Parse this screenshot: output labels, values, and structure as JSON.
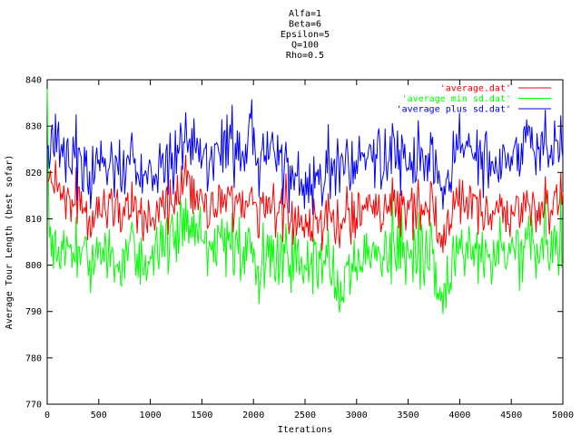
{
  "chart_data": {
    "type": "line",
    "title_lines": [
      "Alfa=1",
      "Beta=6",
      "Epsilon=5",
      "Q=100",
      "Rho=0.5"
    ],
    "xlabel": "Iterations",
    "ylabel": "Average Tour Length (best sofar)",
    "xlim": [
      0,
      5000
    ],
    "ylim": [
      770,
      840
    ],
    "xticks": [
      0,
      500,
      1000,
      1500,
      2000,
      2500,
      3000,
      3500,
      4000,
      4500,
      5000
    ],
    "yticks": [
      770,
      780,
      790,
      800,
      810,
      820,
      830,
      840
    ],
    "grid": false,
    "legend_position": "top-right",
    "samples_per_series": 500,
    "series": [
      {
        "name": "'average.dat'",
        "color": "#ff0000",
        "keypoints": [
          [
            0,
            818
          ],
          [
            250,
            812
          ],
          [
            500,
            812
          ],
          [
            750,
            813
          ],
          [
            1000,
            810
          ],
          [
            1250,
            813
          ],
          [
            1350,
            818
          ],
          [
            1500,
            812
          ],
          [
            1750,
            814
          ],
          [
            2000,
            813
          ],
          [
            2250,
            812
          ],
          [
            2500,
            809
          ],
          [
            2750,
            812
          ],
          [
            2850,
            806
          ],
          [
            3000,
            812
          ],
          [
            3250,
            813
          ],
          [
            3500,
            812
          ],
          [
            3750,
            812
          ],
          [
            3800,
            805
          ],
          [
            4000,
            814
          ],
          [
            4250,
            812
          ],
          [
            4500,
            812
          ],
          [
            4750,
            812
          ],
          [
            5000,
            813
          ]
        ],
        "amplitude": 7
      },
      {
        "name": "'average min sd.dat'",
        "color": "#00ff00",
        "keypoints": [
          [
            0,
            838
          ],
          [
            20,
            803
          ],
          [
            250,
            803
          ],
          [
            500,
            803
          ],
          [
            750,
            802
          ],
          [
            1000,
            802
          ],
          [
            1250,
            806
          ],
          [
            1350,
            808
          ],
          [
            1500,
            803
          ],
          [
            1750,
            805
          ],
          [
            2000,
            801
          ],
          [
            2250,
            801
          ],
          [
            2500,
            801
          ],
          [
            2750,
            801
          ],
          [
            2850,
            793
          ],
          [
            3000,
            801
          ],
          [
            3250,
            803
          ],
          [
            3500,
            803
          ],
          [
            3750,
            802
          ],
          [
            3800,
            793
          ],
          [
            4000,
            803
          ],
          [
            4250,
            803
          ],
          [
            4500,
            803
          ],
          [
            4750,
            803
          ],
          [
            5000,
            803
          ]
        ],
        "amplitude": 9
      },
      {
        "name": "'average plus sd.dat'",
        "color": "#0000ff",
        "keypoints": [
          [
            0,
            825
          ],
          [
            250,
            821
          ],
          [
            500,
            823
          ],
          [
            750,
            822
          ],
          [
            1000,
            820
          ],
          [
            1250,
            822
          ],
          [
            1350,
            828
          ],
          [
            1500,
            821
          ],
          [
            1750,
            825
          ],
          [
            2000,
            825
          ],
          [
            2250,
            823
          ],
          [
            2500,
            818
          ],
          [
            2750,
            822
          ],
          [
            2850,
            820
          ],
          [
            3000,
            823
          ],
          [
            3250,
            824
          ],
          [
            3500,
            822
          ],
          [
            3750,
            822
          ],
          [
            3800,
            816
          ],
          [
            4000,
            825
          ],
          [
            4250,
            823
          ],
          [
            4500,
            822
          ],
          [
            4750,
            825
          ],
          [
            5000,
            824
          ]
        ],
        "amplitude": 9
      }
    ]
  }
}
